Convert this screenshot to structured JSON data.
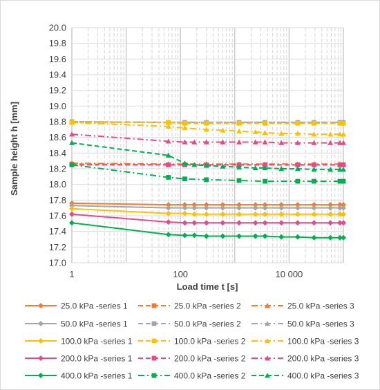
{
  "chart_data": {
    "type": "line",
    "xlabel": "Load time t [s]",
    "ylabel": "Sample height h [mm]",
    "x_scale": "log",
    "xlim": [
      1,
      100000
    ],
    "ylim": [
      17.0,
      20.0
    ],
    "y_ticks": [
      17.0,
      17.2,
      17.4,
      17.6,
      17.8,
      18.0,
      18.2,
      18.4,
      18.6,
      18.8,
      19.0,
      19.2,
      19.4,
      19.6,
      19.8,
      20.0
    ],
    "y_tick_labels": [
      "17.0",
      "17.2",
      "17.4",
      "17.6",
      "17.8",
      "18.0",
      "18.2",
      "18.4",
      "18.6",
      "18.8",
      "19.0",
      "19.2",
      "19.4",
      "19.6",
      "19.8",
      "20.0"
    ],
    "x_ticks": [
      1,
      100,
      10000
    ],
    "x_tick_labels": [
      "1",
      "100",
      "10 000"
    ],
    "grid": true,
    "legend_position": "bottom",
    "series": [
      {
        "name": "25.0 kPa -series 1",
        "color": "#ed7d31",
        "dash": "solid",
        "marker": "diamond",
        "x": [
          1,
          60,
          120,
          180,
          300,
          600,
          1200,
          2400,
          3600,
          7200,
          14400,
          28800,
          57600,
          86400,
          100000
        ],
        "y": [
          17.76,
          17.74,
          17.74,
          17.74,
          17.74,
          17.74,
          17.74,
          17.74,
          17.74,
          17.74,
          17.74,
          17.74,
          17.74,
          17.74,
          17.74
        ]
      },
      {
        "name": "25.0 kPa -series 2",
        "color": "#ed7d31",
        "dash": "dash",
        "marker": "square",
        "x": [
          1,
          60,
          120,
          300,
          1200,
          3600,
          14400,
          28800,
          86400,
          100000
        ],
        "y": [
          18.26,
          18.25,
          18.25,
          18.25,
          18.25,
          18.25,
          18.25,
          18.25,
          18.25,
          18.25
        ]
      },
      {
        "name": "25.0 kPa -series 3",
        "color": "#ed7d31",
        "dash": "dashdot",
        "marker": "triangle",
        "x": [
          1,
          60,
          120,
          300,
          1200,
          3600,
          14400,
          28800,
          86400,
          100000
        ],
        "y": [
          18.27,
          18.26,
          18.26,
          18.26,
          18.26,
          18.26,
          18.26,
          18.26,
          18.26,
          18.26
        ]
      },
      {
        "name": "50.0 kPa -series 1",
        "color": "#a5a5a5",
        "dash": "solid",
        "marker": "diamond",
        "x": [
          1,
          60,
          120,
          180,
          300,
          600,
          1200,
          2400,
          3600,
          7200,
          14400,
          28800,
          57600,
          86400,
          100000
        ],
        "y": [
          17.73,
          17.7,
          17.7,
          17.7,
          17.7,
          17.7,
          17.7,
          17.7,
          17.7,
          17.7,
          17.7,
          17.7,
          17.7,
          17.7,
          17.7
        ]
      },
      {
        "name": "50.0 kPa -series 2",
        "color": "#a5a5a5",
        "dash": "dash",
        "marker": "square",
        "x": [
          1,
          60,
          120,
          300,
          1200,
          3600,
          14400,
          28800,
          86400,
          100000
        ],
        "y": [
          18.8,
          18.79,
          18.79,
          18.79,
          18.79,
          18.79,
          18.79,
          18.79,
          18.79,
          18.79
        ]
      },
      {
        "name": "50.0 kPa -series 3",
        "color": "#a5a5a5",
        "dash": "dashdot",
        "marker": "triangle",
        "x": [
          1,
          60,
          120,
          300,
          1200,
          3600,
          14400,
          28800,
          86400,
          100000
        ],
        "y": [
          18.8,
          18.79,
          18.79,
          18.79,
          18.79,
          18.79,
          18.79,
          18.79,
          18.79,
          18.79
        ]
      },
      {
        "name": "100.0 kPa -series 1",
        "color": "#ffc000",
        "dash": "solid",
        "marker": "diamond",
        "x": [
          1,
          60,
          120,
          180,
          300,
          600,
          1200,
          2400,
          3600,
          7200,
          14400,
          28800,
          57600,
          86400,
          100000
        ],
        "y": [
          17.69,
          17.63,
          17.63,
          17.62,
          17.62,
          17.62,
          17.62,
          17.62,
          17.62,
          17.62,
          17.62,
          17.62,
          17.62,
          17.62,
          17.62
        ]
      },
      {
        "name": "100.0 kPa -series 2",
        "color": "#ffc000",
        "dash": "dash",
        "marker": "square",
        "x": [
          1,
          60,
          120,
          300,
          1200,
          3600,
          14400,
          28800,
          86400,
          100000
        ],
        "y": [
          18.79,
          18.79,
          18.78,
          18.78,
          18.78,
          18.78,
          18.78,
          18.78,
          18.78,
          18.78
        ]
      },
      {
        "name": "100.0 kPa -series 3",
        "color": "#ffc000",
        "dash": "dashdot",
        "marker": "triangle",
        "x": [
          1,
          60,
          120,
          300,
          600,
          1200,
          2400,
          3600,
          7200,
          14400,
          28800,
          57600,
          86400,
          100000
        ],
        "y": [
          18.79,
          18.74,
          18.72,
          18.7,
          18.69,
          18.68,
          18.67,
          18.66,
          18.65,
          18.65,
          18.64,
          18.64,
          18.64,
          18.64
        ]
      },
      {
        "name": "200.0 kPa -series 1",
        "color": "#e8498a",
        "dash": "solid",
        "marker": "diamond",
        "x": [
          1,
          60,
          120,
          180,
          300,
          600,
          1200,
          2400,
          3600,
          7200,
          14400,
          28800,
          57600,
          86400,
          100000
        ],
        "y": [
          17.62,
          17.52,
          17.51,
          17.51,
          17.51,
          17.51,
          17.51,
          17.51,
          17.51,
          17.51,
          17.51,
          17.51,
          17.51,
          17.51,
          17.51
        ]
      },
      {
        "name": "200.0 kPa -series 2",
        "color": "#e8498a",
        "dash": "dash",
        "marker": "square",
        "x": [
          1,
          60,
          120,
          300,
          1200,
          3600,
          14400,
          28800,
          86400,
          100000
        ],
        "y": [
          18.25,
          18.25,
          18.25,
          18.25,
          18.25,
          18.25,
          18.25,
          18.25,
          18.25,
          18.25
        ]
      },
      {
        "name": "200.0 kPa -series 3",
        "color": "#e8498a",
        "dash": "dashdot",
        "marker": "triangle",
        "x": [
          1,
          60,
          120,
          180,
          300,
          600,
          1200,
          2400,
          3600,
          7200,
          14400,
          28800,
          57600,
          86400,
          100000
        ],
        "y": [
          18.64,
          18.55,
          18.54,
          18.54,
          18.54,
          18.54,
          18.54,
          18.54,
          18.54,
          18.53,
          18.53,
          18.53,
          18.53,
          18.53,
          18.53
        ]
      },
      {
        "name": "400.0 kPa -series 1",
        "color": "#00b050",
        "dash": "solid",
        "marker": "diamond",
        "x": [
          1,
          60,
          120,
          180,
          300,
          600,
          1200,
          2400,
          3600,
          7200,
          14400,
          28800,
          57600,
          86400,
          100000
        ],
        "y": [
          17.51,
          17.36,
          17.35,
          17.35,
          17.34,
          17.34,
          17.34,
          17.34,
          17.34,
          17.33,
          17.33,
          17.32,
          17.32,
          17.32,
          17.32
        ]
      },
      {
        "name": "400.0 kPa -series 2",
        "color": "#00b050",
        "dash": "dashdot",
        "marker": "square",
        "x": [
          1,
          60,
          120,
          300,
          1200,
          3600,
          14400,
          28800,
          86400,
          100000
        ],
        "y": [
          18.25,
          18.09,
          18.07,
          18.06,
          18.05,
          18.04,
          18.04,
          18.04,
          18.04,
          18.04
        ]
      },
      {
        "name": "400.0 kPa -series 3",
        "color": "#00b050",
        "dash": "dash",
        "marker": "triangle",
        "x": [
          1,
          60,
          120,
          180,
          300,
          600,
          1200,
          2400,
          3600,
          7200,
          14400,
          28800,
          57600,
          86400,
          100000
        ],
        "y": [
          18.53,
          18.37,
          18.27,
          18.25,
          18.24,
          18.23,
          18.22,
          18.21,
          18.21,
          18.2,
          18.2,
          18.19,
          18.19,
          18.19,
          18.19
        ]
      }
    ]
  }
}
